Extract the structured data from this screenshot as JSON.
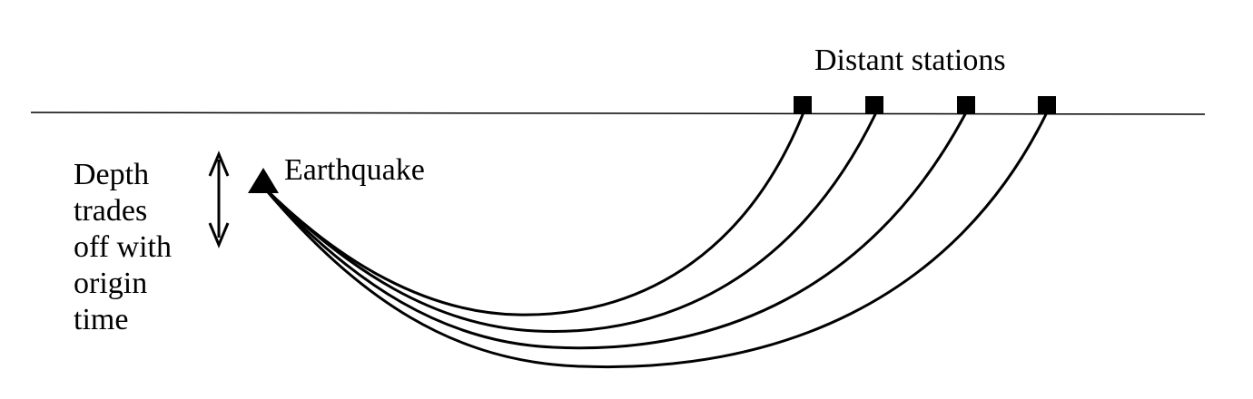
{
  "title": "",
  "labels": {
    "stations": "Distant stations",
    "earthquake": "Earthquake",
    "tradeoff": [
      "Depth",
      "trades",
      "off with",
      "origin",
      "time"
    ]
  },
  "icons": {
    "station": "square-station-icon",
    "earthquake": "triangle-source-icon",
    "tradeoff": "double-arrow-icon"
  },
  "colors": {
    "ink": "#000000",
    "background": "#ffffff"
  }
}
